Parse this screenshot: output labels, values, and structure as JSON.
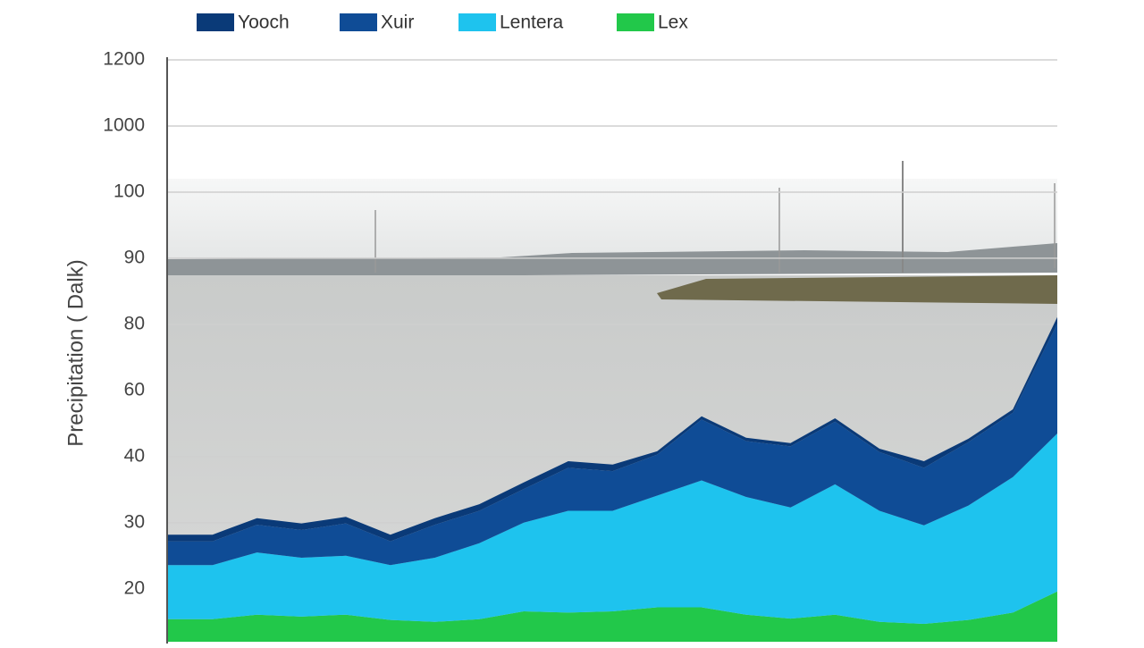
{
  "chart_data": {
    "type": "stacked-area",
    "y_label": "Precipitation ( Dalk)",
    "ylim": [
      12,
      1200
    ],
    "yticks": [
      20,
      30,
      40,
      60,
      80,
      90,
      100,
      1000,
      1200
    ],
    "grid": true,
    "legend": "top",
    "series": [
      {
        "name": "Lex",
        "color": "#22c84a",
        "values": [
          15.4,
          15.4,
          16.1,
          15.8,
          16.1,
          15.3,
          15.0,
          15.4,
          16.6,
          16.4,
          16.6,
          17.2,
          17.2,
          16.1,
          15.5,
          16.1,
          15.0,
          14.7,
          15.3,
          16.4,
          19.6
        ]
      },
      {
        "name": "Lentera",
        "color": "#1ec3ee",
        "values": [
          8.2,
          8.2,
          9.4,
          8.9,
          8.9,
          8.3,
          9.7,
          11.5,
          13.4,
          15.4,
          15.2,
          16.9,
          19.2,
          17.8,
          16.8,
          19.7,
          16.8,
          14.9,
          17.3,
          20.5,
          27.4
        ]
      },
      {
        "name": "Xuir",
        "color": "#0f4c96",
        "values": [
          3.6,
          3.6,
          4.2,
          4.2,
          4.9,
          3.6,
          5.0,
          4.9,
          5.1,
          6.5,
          6.0,
          6.5,
          14.8,
          10.8,
          10.8,
          14.8,
          9.6,
          8.7,
          11.8,
          16.4,
          33.1
        ]
      },
      {
        "name": "Yooch",
        "color": "#0a3a78",
        "values": [
          1,
          1,
          1,
          1,
          1,
          1,
          1,
          1,
          1,
          1,
          1,
          1,
          1,
          1,
          1,
          1,
          1,
          1,
          1,
          1,
          1
        ]
      }
    ]
  }
}
